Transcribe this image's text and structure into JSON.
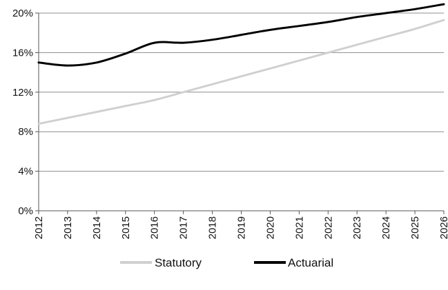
{
  "chart_data": {
    "type": "line",
    "title": "",
    "xlabel": "",
    "ylabel": "",
    "x": [
      2012,
      2013,
      2014,
      2015,
      2016,
      2017,
      2018,
      2019,
      2020,
      2021,
      2022,
      2023,
      2024,
      2025,
      2026
    ],
    "x_tick_labels": [
      "2012",
      "2013",
      "2014",
      "2015",
      "2016",
      "2017",
      "2018",
      "2019",
      "2020",
      "2021",
      "2022",
      "2023",
      "2024",
      "2025",
      "2026"
    ],
    "ylim": [
      0,
      20
    ],
    "y_ticks": [
      0,
      4,
      8,
      12,
      16,
      20
    ],
    "y_tick_labels": [
      "0%",
      "4%",
      "8%",
      "12%",
      "16%",
      "20%"
    ],
    "grid": "horizontal",
    "legend_position": "bottom",
    "series": [
      {
        "name": "Statutory",
        "color": "#d0d0d0",
        "values": [
          8.8,
          9.4,
          10.0,
          10.6,
          11.2,
          12.0,
          12.8,
          13.6,
          14.4,
          15.2,
          16.0,
          16.8,
          17.6,
          18.4,
          19.3
        ]
      },
      {
        "name": "Actuarial",
        "color": "#000000",
        "values": [
          15.0,
          14.7,
          15.0,
          15.9,
          17.0,
          17.0,
          17.3,
          17.8,
          18.3,
          18.7,
          19.1,
          19.6,
          20.0,
          20.4,
          20.9
        ]
      }
    ]
  }
}
